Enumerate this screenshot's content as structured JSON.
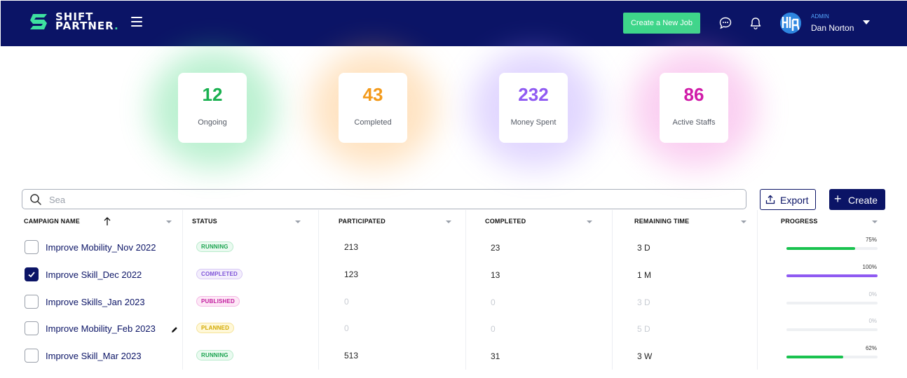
{
  "header": {
    "logo_line1": "SHIFT",
    "logo_line2": "PARTNER",
    "logo_dot": ".",
    "create_job_label": "Create a New Job",
    "user_role": "ADMIN",
    "user_name": "Dan Norton",
    "brand_color": "#0b1466",
    "accent_color": "#3ed68a"
  },
  "stats": [
    {
      "value": "12",
      "label": "Ongoing",
      "color": "#19b04f"
    },
    {
      "value": "43",
      "label": "Completed",
      "color": "#f39a1b"
    },
    {
      "value": "232",
      "label": "Money Spent",
      "color": "#8f5af2"
    },
    {
      "value": "86",
      "label": "Active Staffs",
      "color": "#d01ba8"
    }
  ],
  "search": {
    "value": "",
    "placeholder": "Sea"
  },
  "actions": {
    "export_label": "Export",
    "create_label": "Create"
  },
  "table": {
    "columns": [
      "CAMPAIGN NAME",
      "STATUS",
      "PARTICIPATED",
      "COMPLETED",
      "REMAINING TIME",
      "PROGRESS"
    ],
    "rows": [
      {
        "checked": false,
        "name": "Improve Mobility_Nov 2022",
        "status": "RUNNING",
        "status_kind": "running",
        "participated": "213",
        "completed": "23",
        "remaining": "3 D",
        "progress_label": "75%",
        "progress": 0.75,
        "bar_color": "#19c24f",
        "muted": false,
        "edit": false
      },
      {
        "checked": true,
        "name": "Improve Skill_Dec 2022",
        "status": "COMPLETED",
        "status_kind": "completed",
        "participated": "123",
        "completed": "13",
        "remaining": "1 M",
        "progress_label": "100%",
        "progress": 1.0,
        "bar_color": "#8f5af2",
        "muted": false,
        "edit": false
      },
      {
        "checked": false,
        "name": "Improve Skills_Jan 2023",
        "status": "PUBLISHED",
        "status_kind": "published",
        "participated": "0",
        "completed": "0",
        "remaining": "3 D",
        "progress_label": "0%",
        "progress": 0,
        "bar_color": "#19c24f",
        "muted": true,
        "edit": false
      },
      {
        "checked": false,
        "name": "Improve Mobility_Feb 2023",
        "status": "PLANNED",
        "status_kind": "planned",
        "participated": "0",
        "completed": "0",
        "remaining": "5 D",
        "progress_label": "0%",
        "progress": 0,
        "bar_color": "#19c24f",
        "muted": true,
        "edit": true
      },
      {
        "checked": false,
        "name": "Improve Skill_Mar 2023",
        "status": "RUNNING",
        "status_kind": "running",
        "participated": "513",
        "completed": "31",
        "remaining": "3 W",
        "progress_label": "62%",
        "progress": 0.62,
        "bar_color": "#19c24f",
        "muted": false,
        "edit": false
      }
    ]
  }
}
